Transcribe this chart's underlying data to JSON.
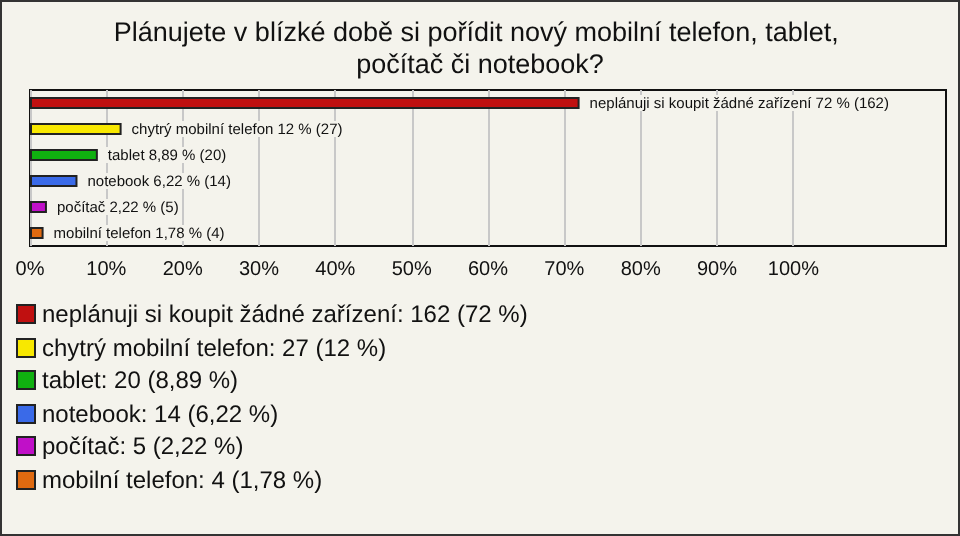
{
  "chart_data": {
    "type": "bar",
    "orientation": "horizontal",
    "title": "Plánujete v blízké době si pořídit nový mobilní telefon, tablet, počítač či notebook?",
    "categories": [
      null,
      null,
      null,
      null,
      null,
      null
    ],
    "values": [
      72,
      12,
      8.89,
      6.22,
      2.22,
      1.78
    ],
    "colors": [
      "#c01010",
      "#f8e800",
      "#10b010",
      "#3a6ae8",
      "#c010c8",
      "#e06a10"
    ],
    "value_labels": [
      "neplánuji si koupit žádné zařízení 72 % (162)",
      "chytrý mobilní telefon 12 % (27)",
      "tablet 8,89 % (20)",
      "notebook 6,22 % (14)",
      "počítač 2,22 % (5)",
      "mobilní telefon 1,78 % (4)"
    ],
    "xlim": [
      0,
      120
    ],
    "xticks": [
      {
        "value": 0,
        "label": "0%"
      },
      {
        "value": 10,
        "label": "10%"
      },
      {
        "value": 20,
        "label": "20%"
      },
      {
        "value": 30,
        "label": "30%"
      },
      {
        "value": 40,
        "label": "40%"
      },
      {
        "value": 50,
        "label": "50%"
      },
      {
        "value": 60,
        "label": "60%"
      },
      {
        "value": 70,
        "label": "70%"
      },
      {
        "value": 80,
        "label": "80%"
      },
      {
        "value": 90,
        "label": "90%"
      },
      {
        "value": 100,
        "label": "100%"
      }
    ],
    "grid": "x",
    "annotations": [
      "neplánuji si koupit žádné zařízení: 162 (72 %)",
      "chytrý mobilní telefon: 27 (12 %)",
      "tablet: 20 (8,89 %)",
      "notebook: 14 (6,22 %)",
      "počítač: 5 (2,22 %)",
      "mobilní telefon: 4 (1,78 %)"
    ]
  }
}
